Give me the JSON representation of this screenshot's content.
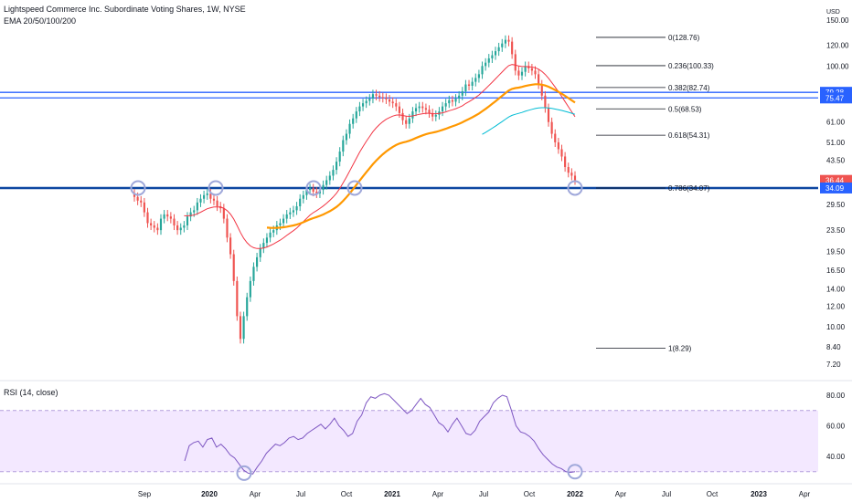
{
  "header": {
    "title": "Lightspeed Commerce Inc. Subordinate Voting Shares, 1W, NYSE",
    "indicator": "EMA 20/50/100/200",
    "currency": "USD"
  },
  "rsi_title": "RSI (14, close)",
  "colors": {
    "up": "#26a69a",
    "down": "#ef5350",
    "ema20": "#f23645",
    "ema50": "#ff9800",
    "ema100": "#00bcd4",
    "hline": "#2962ff",
    "support": "#0d47a1",
    "rsi_line": "#7e57c2",
    "rsi_band": "#f3e8ff",
    "circle": "#9fa8da",
    "badge_red": "#ef5350",
    "badge_blue": "#2962ff"
  },
  "chart_data": [
    {
      "type": "candlestick",
      "price_scale": "log",
      "y_ticks": [
        "7.20",
        "8.40",
        "10.00",
        "12.00",
        "14.00",
        "16.50",
        "19.50",
        "23.50",
        "29.50",
        "34.09",
        "36.44",
        "43.50",
        "51.00",
        "61.00",
        "75.47",
        "79.28",
        "100.00",
        "120.00",
        "150.00"
      ],
      "x_ticks": [
        "Sep",
        "2020",
        "Apr",
        "Jul",
        "Oct",
        "2021",
        "Apr",
        "Jul",
        "Oct",
        "2022",
        "Apr",
        "Jul",
        "Oct",
        "2023",
        "Apr"
      ],
      "price_badges": [
        {
          "label": "79.28",
          "value": 79.28,
          "color": "blue"
        },
        {
          "label": "75.47",
          "value": 75.47,
          "color": "blue"
        },
        {
          "label": "36.44",
          "value": 36.44,
          "color": "red"
        },
        {
          "label": "34.09",
          "value": 34.09,
          "color": "blue"
        }
      ],
      "horizontal_lines": [
        79.28,
        75.47,
        34.09
      ],
      "fibonacci": [
        {
          "label": "0(128.76)",
          "level": 128.76
        },
        {
          "label": "0.236(100.33)",
          "level": 100.33
        },
        {
          "label": "0.382(82.74)",
          "level": 82.74
        },
        {
          "label": "0.5(68.53)",
          "level": 68.53
        },
        {
          "label": "0.618(54.31)",
          "level": 54.31
        },
        {
          "label": "0.786(34.07)",
          "level": 34.07
        },
        {
          "label": "1(8.29)",
          "level": 8.29
        }
      ],
      "candles_weekly_close": [
        31.5,
        30.5,
        30,
        27.5,
        25,
        24.5,
        24,
        23.5,
        26,
        27,
        26.5,
        26,
        24.5,
        23.5,
        24,
        24.5,
        26.5,
        27.5,
        28,
        30,
        31,
        32,
        32.5,
        31,
        30.5,
        29,
        28.5,
        26,
        22,
        19,
        15,
        11,
        9,
        11,
        13,
        15,
        17,
        18.5,
        20,
        21,
        22,
        23,
        23.5,
        24.5,
        25,
        26,
        27,
        27.5,
        28,
        29,
        31,
        32,
        33.5,
        34,
        33,
        32.5,
        33.5,
        35,
        36.5,
        38,
        40,
        43,
        47,
        52,
        55,
        60,
        63,
        67,
        70,
        72,
        73.5,
        75,
        78,
        77,
        76,
        75.5,
        74.5,
        73,
        72,
        70,
        66,
        62,
        60,
        63,
        67,
        69,
        70,
        69,
        68,
        66,
        64,
        65,
        67,
        70,
        72,
        74,
        73,
        75,
        77,
        80,
        85,
        84,
        87,
        90,
        93,
        100,
        103,
        107,
        110,
        114,
        118,
        122,
        126,
        124,
        111,
        96,
        92,
        95,
        100,
        98,
        96,
        93,
        85,
        77,
        69,
        61,
        55,
        51,
        48,
        45,
        41,
        39,
        38,
        36.5
      ],
      "ema20_last": 68,
      "ema50_last": 75,
      "ema100_last": 57
    },
    {
      "type": "line",
      "title": "RSI (14, close)",
      "y_ticks": [
        "40.00",
        "60.00",
        "80.00"
      ],
      "band": [
        30,
        70
      ],
      "values": [
        37,
        47,
        49,
        50,
        46,
        51,
        52,
        46,
        48,
        45,
        41,
        39,
        35,
        31,
        29,
        28.5,
        33,
        37,
        42,
        45,
        48,
        47,
        49,
        52,
        53,
        51,
        52,
        55,
        57,
        59,
        61,
        58,
        61,
        65,
        60,
        57,
        53,
        55,
        63,
        67,
        75,
        79,
        78,
        80,
        81,
        80,
        77,
        74,
        71,
        68,
        70,
        74,
        78,
        74,
        72,
        67,
        62,
        60,
        56,
        61,
        65,
        60,
        55,
        54,
        57,
        63,
        66,
        69,
        75,
        78,
        80,
        79,
        70,
        60,
        56,
        55,
        53,
        50,
        45,
        41,
        38,
        35,
        33,
        32,
        30,
        29.5,
        30
      ],
      "value_unit": "RSI"
    }
  ]
}
